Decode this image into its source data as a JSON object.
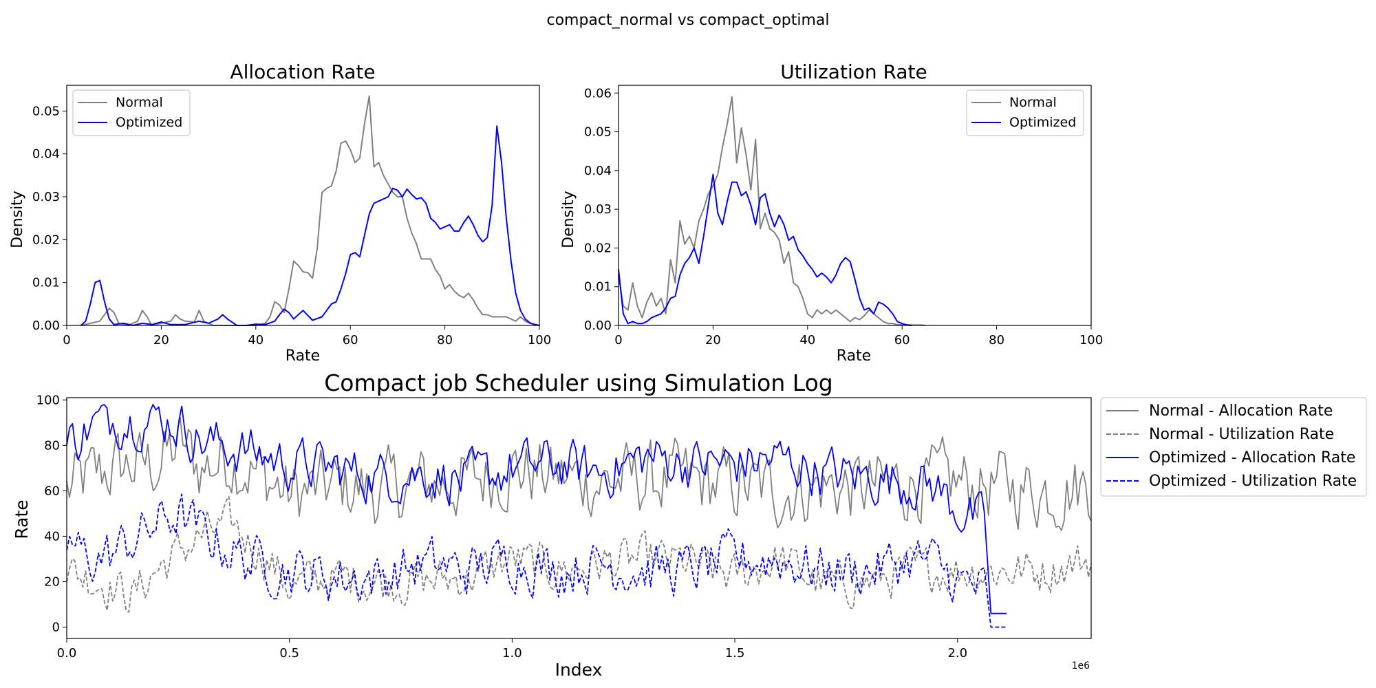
{
  "suptitle": "compact_normal vs compact_optimal",
  "colors": {
    "normal": "#808080",
    "optimized": "#0000ff"
  },
  "chart_data": [
    {
      "type": "line",
      "title": "Allocation Rate",
      "xlabel": "Rate",
      "ylabel": "Density",
      "xlim": [
        0,
        100
      ],
      "ylim": [
        0,
        0.056
      ],
      "xticks": [
        0,
        20,
        40,
        60,
        80,
        100
      ],
      "xtick_labels": [
        "0",
        "20",
        "40",
        "60",
        "80",
        "100"
      ],
      "yticks": [
        0,
        0.01,
        0.02,
        0.03,
        0.04,
        0.05
      ],
      "ytick_labels": [
        "0.00",
        "0.01",
        "0.02",
        "0.03",
        "0.04",
        "0.05"
      ],
      "legend": {
        "position": "upper left",
        "entries": [
          "Normal",
          "Optimized"
        ]
      },
      "series": [
        {
          "name": "Normal",
          "x": [
            3,
            5,
            7,
            8,
            9,
            10,
            11,
            13,
            15,
            16,
            17,
            18,
            20,
            22,
            23,
            24,
            25,
            27,
            28,
            29,
            31,
            33,
            35,
            38,
            40,
            42,
            43,
            44,
            45,
            46,
            47,
            48,
            49,
            50,
            51,
            52,
            53,
            54,
            55,
            56,
            57,
            58,
            59,
            60,
            61,
            62,
            63,
            64,
            65,
            66,
            67,
            68,
            69,
            70,
            71,
            72,
            73,
            74,
            75,
            76,
            77,
            78,
            79,
            80,
            81,
            82,
            83,
            84,
            85,
            86,
            87,
            88,
            89,
            90,
            91,
            92,
            93,
            94,
            95,
            96,
            97,
            98,
            99,
            100
          ],
          "y": [
            0,
            0.0005,
            0.001,
            0.0025,
            0.004,
            0.003,
            0.0005,
            0,
            0.001,
            0.0035,
            0.002,
            0,
            0.0005,
            0.001,
            0.0025,
            0.0015,
            0.001,
            0.0008,
            0.0035,
            0.001,
            0,
            0,
            0,
            0,
            0,
            0.0005,
            0.002,
            0.0055,
            0.0048,
            0.003,
            0.0085,
            0.015,
            0.014,
            0.0125,
            0.0123,
            0.011,
            0.018,
            0.031,
            0.032,
            0.0325,
            0.036,
            0.0425,
            0.043,
            0.041,
            0.038,
            0.039,
            0.047,
            0.0535,
            0.037,
            0.038,
            0.035,
            0.033,
            0.031,
            0.03,
            0.03,
            0.025,
            0.0215,
            0.019,
            0.0155,
            0.0155,
            0.0155,
            0.013,
            0.0115,
            0.0085,
            0.0095,
            0.008,
            0.007,
            0.0065,
            0.0075,
            0.006,
            0.004,
            0.0025,
            0.0025,
            0.002,
            0.002,
            0.002,
            0.002,
            0.0015,
            0.001,
            0.002,
            0.001,
            0.0005,
            0.0003,
            0
          ]
        },
        {
          "name": "Optimized",
          "x": [
            3,
            4,
            5,
            6,
            7,
            8,
            9,
            10,
            12,
            14,
            16,
            18,
            20,
            22,
            25,
            28,
            30,
            32,
            33,
            34,
            36,
            38,
            40,
            42,
            44,
            45,
            46,
            47,
            48,
            49,
            50,
            52,
            54,
            56,
            57,
            58,
            59,
            60,
            61,
            62,
            63,
            64,
            65,
            66,
            67,
            68,
            69,
            70,
            71,
            72,
            73,
            74,
            75,
            76,
            77,
            78,
            79,
            80,
            81,
            82,
            83,
            84,
            85,
            86,
            87,
            88,
            89,
            90,
            91,
            92,
            93,
            94,
            95,
            96,
            97,
            98,
            99,
            100
          ],
          "y": [
            0,
            0.001,
            0.005,
            0.01,
            0.0105,
            0.0055,
            0.0015,
            0.0002,
            0.0005,
            0,
            0.0005,
            0.0002,
            0.0008,
            0.0002,
            0.0002,
            0.001,
            0.0005,
            0.0015,
            0.0025,
            0.0015,
            0,
            0,
            0.0003,
            0.0002,
            0.001,
            0.0025,
            0.0038,
            0.003,
            0.0015,
            0.0025,
            0.0035,
            0.0012,
            0.002,
            0.005,
            0.0055,
            0.0085,
            0.012,
            0.0165,
            0.017,
            0.016,
            0.021,
            0.026,
            0.0285,
            0.029,
            0.0295,
            0.03,
            0.032,
            0.0315,
            0.03,
            0.0318,
            0.0305,
            0.0295,
            0.0298,
            0.0285,
            0.025,
            0.024,
            0.0225,
            0.023,
            0.0235,
            0.022,
            0.022,
            0.024,
            0.0255,
            0.0235,
            0.021,
            0.0195,
            0.0205,
            0.028,
            0.0465,
            0.038,
            0.025,
            0.015,
            0.0075,
            0.0035,
            0.0015,
            0.0006,
            0.0002,
            0
          ]
        }
      ]
    },
    {
      "type": "line",
      "title": "Utilization Rate",
      "xlabel": "Rate",
      "ylabel": "Density",
      "xlim": [
        0,
        100
      ],
      "ylim": [
        0,
        0.062
      ],
      "xticks": [
        0,
        20,
        40,
        60,
        80,
        100
      ],
      "xtick_labels": [
        "0",
        "20",
        "40",
        "60",
        "80",
        "100"
      ],
      "yticks": [
        0,
        0.01,
        0.02,
        0.03,
        0.04,
        0.05,
        0.06
      ],
      "ytick_labels": [
        "0.00",
        "0.01",
        "0.02",
        "0.03",
        "0.04",
        "0.05",
        "0.06"
      ],
      "legend": {
        "position": "upper right",
        "entries": [
          "Normal",
          "Optimized"
        ]
      },
      "series": [
        {
          "name": "Normal",
          "x": [
            0,
            1,
            2,
            3,
            4,
            5,
            6,
            7,
            8,
            9,
            10,
            11,
            12,
            13,
            14,
            15,
            16,
            17,
            18,
            19,
            20,
            21,
            22,
            23,
            24,
            25,
            26,
            27,
            28,
            29,
            30,
            31,
            32,
            33,
            34,
            35,
            36,
            37,
            38,
            39,
            40,
            41,
            42,
            43,
            44,
            45,
            46,
            47,
            48,
            49,
            50,
            51,
            52,
            53,
            54,
            55,
            56,
            57,
            58,
            59,
            60,
            61,
            62,
            63,
            64,
            65
          ],
          "y": [
            0.013,
            0.005,
            0.004,
            0.011,
            0.005,
            0.002,
            0.006,
            0.0085,
            0.005,
            0.007,
            0.003,
            0.017,
            0.011,
            0.027,
            0.021,
            0.023,
            0.02,
            0.027,
            0.03,
            0.034,
            0.036,
            0.039,
            0.046,
            0.052,
            0.059,
            0.042,
            0.051,
            0.044,
            0.035,
            0.048,
            0.025,
            0.029,
            0.025,
            0.024,
            0.022,
            0.016,
            0.019,
            0.011,
            0.01,
            0.007,
            0.003,
            0.002,
            0.004,
            0.003,
            0.004,
            0.003,
            0.004,
            0.003,
            0.002,
            0.001,
            0.002,
            0.0015,
            0.0025,
            0.004,
            0.003,
            0.002,
            0.001,
            0.0005,
            0.0005,
            0.0002,
            0.0002,
            0.0002,
            0.0001,
            0.0001,
            0.0001,
            0
          ]
        },
        {
          "name": "Optimized",
          "x": [
            0,
            1,
            2,
            3,
            4,
            5,
            6,
            7,
            8,
            9,
            10,
            11,
            12,
            13,
            14,
            15,
            16,
            17,
            18,
            19,
            20,
            21,
            22,
            23,
            24,
            25,
            26,
            27,
            28,
            29,
            30,
            31,
            32,
            33,
            34,
            35,
            36,
            37,
            38,
            39,
            40,
            41,
            42,
            43,
            44,
            45,
            46,
            47,
            48,
            49,
            50,
            51,
            52,
            53,
            54,
            55,
            56,
            57,
            58,
            59,
            60,
            61,
            62
          ],
          "y": [
            0.0145,
            0.003,
            0.0005,
            0.001,
            0.0005,
            0.0005,
            0.001,
            0.002,
            0.0025,
            0.003,
            0.0045,
            0.007,
            0.0075,
            0.013,
            0.016,
            0.0175,
            0.02,
            0.016,
            0.023,
            0.031,
            0.039,
            0.029,
            0.026,
            0.032,
            0.037,
            0.037,
            0.0335,
            0.0345,
            0.031,
            0.026,
            0.033,
            0.034,
            0.029,
            0.0255,
            0.0285,
            0.026,
            0.022,
            0.023,
            0.0195,
            0.018,
            0.016,
            0.0145,
            0.0125,
            0.0135,
            0.0125,
            0.011,
            0.013,
            0.016,
            0.0175,
            0.0165,
            0.012,
            0.007,
            0.004,
            0.0045,
            0.003,
            0.006,
            0.0055,
            0.0045,
            0.003,
            0.001,
            0.0005,
            0.0001,
            0
          ]
        }
      ]
    },
    {
      "type": "line",
      "title": "Compact job Scheduler using Simulation Log",
      "xlabel": "Index",
      "ylabel": "Rate",
      "x_scale_label": "1e6",
      "xlim": [
        0,
        2.3
      ],
      "ylim": [
        -5,
        101
      ],
      "xticks": [
        0,
        0.5,
        1.0,
        1.5,
        2.0
      ],
      "xtick_labels": [
        "0.0",
        "0.5",
        "1.0",
        "1.5",
        "2.0"
      ],
      "yticks": [
        0,
        20,
        40,
        60,
        80,
        100
      ],
      "ytick_labels": [
        "0",
        "20",
        "40",
        "60",
        "80",
        "100"
      ],
      "legend": {
        "position": "outside right",
        "entries": [
          "Normal - Allocation Rate",
          "Normal - Utilization Rate",
          "Optimized - Allocation Rate",
          "Optimized - Utilization Rate"
        ]
      },
      "generated": {
        "normal_points": 380,
        "normal_x_end": 2.3,
        "optimized_points": 320,
        "optimized_x_end": 2.11,
        "optimized_drop_at": 2.06
      },
      "series": [
        {
          "name": "Normal - Allocation Rate",
          "style": "solid",
          "color": "#808080",
          "anchors_x": [
            0,
            0.05,
            0.1,
            0.2,
            0.26,
            0.3,
            0.37,
            0.45,
            0.5,
            0.6,
            0.7,
            0.8,
            0.9,
            1.0,
            1.1,
            1.2,
            1.3,
            1.4,
            1.5,
            1.6,
            1.7,
            1.8,
            1.9,
            2.0,
            2.1,
            2.2,
            2.3
          ],
          "anchors_y": [
            60,
            65,
            70,
            72,
            80,
            70,
            75,
            65,
            58,
            62,
            60,
            63,
            64,
            70,
            66,
            64,
            65,
            64,
            62,
            60,
            62,
            61,
            64,
            63,
            62,
            60,
            63
          ],
          "amplitude": 10
        },
        {
          "name": "Normal - Utilization Rate",
          "style": "dashed",
          "color": "#808080",
          "anchors_x": [
            0,
            0.05,
            0.1,
            0.15,
            0.2,
            0.3,
            0.37,
            0.45,
            0.5,
            0.6,
            0.7,
            0.8,
            0.9,
            1.0,
            1.1,
            1.2,
            1.3,
            1.4,
            1.5,
            1.6,
            1.7,
            1.8,
            1.9,
            2.0,
            2.1,
            2.2,
            2.3
          ],
          "anchors_y": [
            25,
            22,
            18,
            14,
            25,
            40,
            45,
            30,
            18,
            22,
            20,
            20,
            22,
            30,
            25,
            28,
            30,
            28,
            22,
            30,
            18,
            20,
            25,
            25,
            25,
            25,
            30
          ],
          "amplitude": 6
        },
        {
          "name": "Optimized - Allocation Rate",
          "style": "solid",
          "color": "#0000ff",
          "anchors_x": [
            0,
            0.05,
            0.1,
            0.2,
            0.25,
            0.3,
            0.4,
            0.5,
            0.6,
            0.7,
            0.8,
            0.9,
            1.0,
            1.1,
            1.2,
            1.3,
            1.4,
            1.5,
            1.6,
            1.7,
            1.8,
            1.9,
            1.95,
            2.0,
            2.05
          ],
          "anchors_y": [
            80,
            88,
            92,
            92,
            90,
            82,
            78,
            72,
            70,
            66,
            68,
            64,
            70,
            72,
            68,
            75,
            72,
            72,
            74,
            68,
            66,
            64,
            62,
            52,
            46
          ],
          "amplitude": 7
        },
        {
          "name": "Optimized - Utilization Rate",
          "style": "dashed",
          "color": "#0000ff",
          "anchors_x": [
            0,
            0.05,
            0.1,
            0.2,
            0.25,
            0.3,
            0.4,
            0.5,
            0.6,
            0.7,
            0.8,
            0.9,
            1.0,
            1.1,
            1.2,
            1.3,
            1.4,
            1.5,
            1.6,
            1.7,
            1.8,
            1.9,
            1.95,
            2.0,
            2.05
          ],
          "anchors_y": [
            38,
            30,
            32,
            45,
            50,
            42,
            30,
            25,
            22,
            22,
            28,
            25,
            30,
            25,
            28,
            25,
            25,
            30,
            30,
            25,
            25,
            30,
            28,
            20,
            17
          ],
          "amplitude": 7
        }
      ]
    }
  ]
}
